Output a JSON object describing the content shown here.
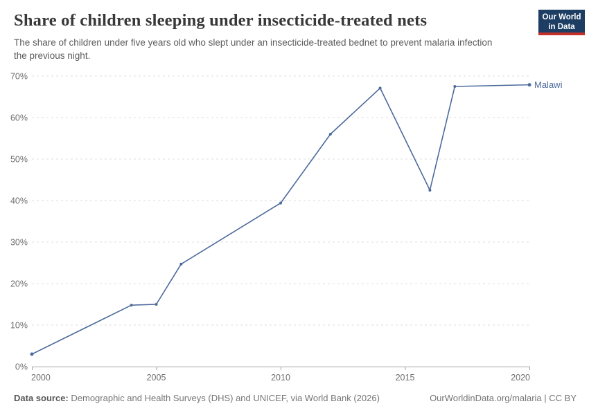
{
  "header": {
    "title": "Share of children sleeping under insecticide-treated nets",
    "subtitle": "The share of children under five years old who slept under an insecticide-treated bednet to prevent malaria infection the previous night.",
    "logo": {
      "line1": "Our World",
      "line2": "in Data",
      "bg_color": "#1d3d63",
      "accent_color": "#c5302b"
    }
  },
  "chart_data": {
    "type": "line",
    "title": "Share of children sleeping under insecticide-treated nets",
    "xlabel": "",
    "ylabel": "",
    "xlim": [
      2000,
      2020
    ],
    "ylim": [
      0,
      70
    ],
    "xticks": [
      2000,
      2005,
      2010,
      2015,
      2020
    ],
    "yticks": [
      0,
      10,
      20,
      30,
      40,
      50,
      60,
      70
    ],
    "ytick_suffix": "%",
    "grid": "horizontal-dashed",
    "legend_position": "end-of-line",
    "series": [
      {
        "name": "Malawi",
        "color": "#4c6a9c",
        "x": [
          2000,
          2004,
          2005,
          2006,
          2010,
          2012,
          2014,
          2016,
          2017,
          2020
        ],
        "values": [
          3,
          14.8,
          15,
          24.7,
          39.4,
          56,
          67.1,
          42.5,
          67.5,
          67.9
        ]
      }
    ]
  },
  "footer": {
    "source_label": "Data source:",
    "source_text": "Demographic and Health Surveys (DHS) and UNICEF, via World Bank (2026)",
    "right_text": "OurWorldinData.org/malaria | CC BY"
  },
  "colors": {
    "line": "#4c6a9c",
    "gridline": "#dcdcdc",
    "axis": "#a1a1a1",
    "tick_text": "#6e6e6e",
    "title_text": "#383838",
    "subtitle_text": "#5b5b5b"
  }
}
